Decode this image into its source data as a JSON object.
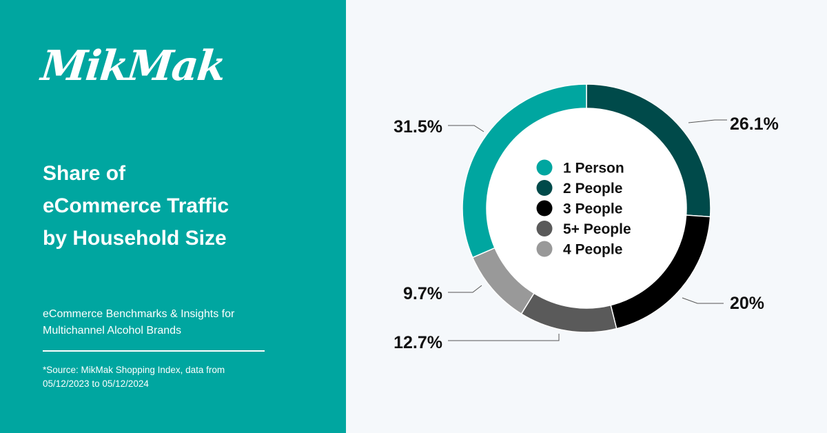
{
  "brand": {
    "logo_text": "MikMak",
    "panel_color": "#00a6a0",
    "background_color": "#f5f8fb"
  },
  "heading": {
    "lines": [
      "Share of",
      "eCommerce Traffic",
      "by Household Size"
    ]
  },
  "subtitle": {
    "lines": [
      "eCommerce Benchmarks & Insights for",
      "Multichannel Alcohol Brands"
    ]
  },
  "source": {
    "lines": [
      "*Source: MikMak Shopping Index, data from",
      "05/12/2023 to 05/12/2024"
    ]
  },
  "chart_data": {
    "type": "pie",
    "donut": true,
    "categories": [
      "1 Person",
      "2 People",
      "3 People",
      "5+ People",
      "4 People"
    ],
    "values": [
      31.5,
      26.1,
      20,
      12.7,
      9.7
    ],
    "value_labels": [
      "31.5%",
      "26.1%",
      "20%",
      "12.7%",
      "9.7%"
    ],
    "colors": [
      "#00a6a0",
      "#004a4a",
      "#000000",
      "#5a5a5a",
      "#999999"
    ],
    "slice_order": [
      "2 People",
      "3 People",
      "5+ People",
      "4 People",
      "1 Person"
    ],
    "start": "top",
    "direction": "clockwise",
    "legend_position": "center"
  }
}
